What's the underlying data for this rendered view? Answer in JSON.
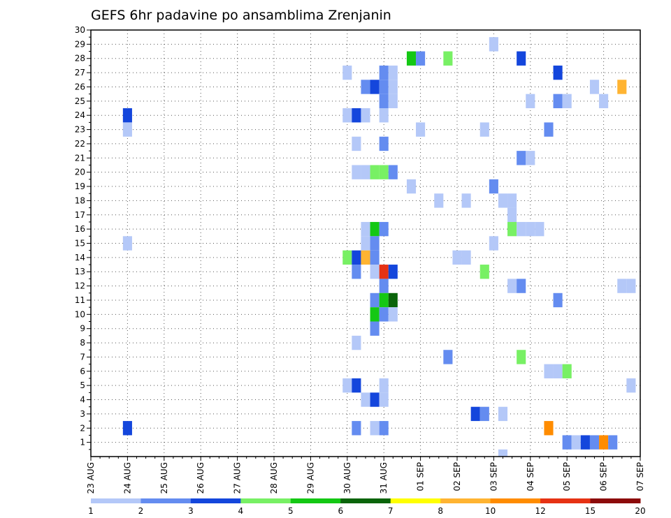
{
  "chart_data": {
    "type": "heatmap",
    "title": "GEFS 6hr padavine po ansamblima Zrenjanin",
    "y_ticks": [
      1,
      2,
      3,
      4,
      5,
      6,
      7,
      8,
      9,
      10,
      11,
      12,
      13,
      14,
      15,
      16,
      17,
      18,
      19,
      20,
      21,
      22,
      23,
      24,
      25,
      26,
      27,
      28,
      29,
      30
    ],
    "ylim": [
      0,
      30
    ],
    "x_ticks": [
      {
        "label": "23 AUG",
        "day": 0
      },
      {
        "label": "24 AUG",
        "day": 1
      },
      {
        "label": "25 AUG",
        "day": 2
      },
      {
        "label": "26 AUG",
        "day": 3
      },
      {
        "label": "27 AUG",
        "day": 4
      },
      {
        "label": "28 AUG",
        "day": 5
      },
      {
        "label": "29 AUG",
        "day": 6
      },
      {
        "label": "30 AUG",
        "day": 7
      },
      {
        "label": "31 AUG",
        "day": 8
      },
      {
        "label": "01 SEP",
        "day": 9
      },
      {
        "label": "02 SEP",
        "day": 10
      },
      {
        "label": "03 SEP",
        "day": 11
      },
      {
        "label": "04 SEP",
        "day": 12
      },
      {
        "label": "05 SEP",
        "day": 13
      },
      {
        "label": "06 SEP",
        "day": 14
      },
      {
        "label": "07 SEP",
        "day": 15
      }
    ],
    "xlim": [
      0,
      15
    ],
    "grid": true,
    "colorbar": {
      "labels": [
        "1",
        "2",
        "3",
        "4",
        "5",
        "6",
        "7",
        "8",
        "10",
        "12",
        "15",
        "20"
      ],
      "colors": [
        "#b4c8f8",
        "#648cf0",
        "#1446dc",
        "#78f064",
        "#14c814",
        "#0a640a",
        "#ffff00",
        "#ffb432",
        "#ff8c00",
        "#e63214",
        "#8c0a0a"
      ]
    },
    "cells": [
      {
        "x": 1.0,
        "y": 24,
        "v": 3
      },
      {
        "x": 1.0,
        "y": 23,
        "v": 1
      },
      {
        "x": 1.0,
        "y": 15,
        "v": 1
      },
      {
        "x": 1.0,
        "y": 2,
        "v": 3
      },
      {
        "x": 7.0,
        "y": 27,
        "v": 1
      },
      {
        "x": 7.0,
        "y": 24,
        "v": 1
      },
      {
        "x": 7.0,
        "y": 14,
        "v": 4
      },
      {
        "x": 7.0,
        "y": 5,
        "v": 1
      },
      {
        "x": 7.25,
        "y": 24,
        "v": 3
      },
      {
        "x": 7.25,
        "y": 22,
        "v": 1
      },
      {
        "x": 7.25,
        "y": 20,
        "v": 1
      },
      {
        "x": 7.25,
        "y": 14,
        "v": 3
      },
      {
        "x": 7.25,
        "y": 13,
        "v": 2
      },
      {
        "x": 7.25,
        "y": 8,
        "v": 1
      },
      {
        "x": 7.25,
        "y": 5,
        "v": 3
      },
      {
        "x": 7.25,
        "y": 2,
        "v": 2
      },
      {
        "x": 7.5,
        "y": 26,
        "v": 2
      },
      {
        "x": 7.5,
        "y": 24,
        "v": 1
      },
      {
        "x": 7.5,
        "y": 20,
        "v": 1
      },
      {
        "x": 7.5,
        "y": 16,
        "v": 1
      },
      {
        "x": 7.5,
        "y": 15,
        "v": 1
      },
      {
        "x": 7.5,
        "y": 14,
        "v": 8
      },
      {
        "x": 7.5,
        "y": 4,
        "v": 1
      },
      {
        "x": 7.75,
        "y": 26,
        "v": 3
      },
      {
        "x": 7.75,
        "y": 20,
        "v": 4
      },
      {
        "x": 7.75,
        "y": 16,
        "v": 5
      },
      {
        "x": 7.75,
        "y": 15,
        "v": 2
      },
      {
        "x": 7.75,
        "y": 14,
        "v": 2
      },
      {
        "x": 7.75,
        "y": 13,
        "v": 1
      },
      {
        "x": 7.75,
        "y": 11,
        "v": 2
      },
      {
        "x": 7.75,
        "y": 10,
        "v": 5
      },
      {
        "x": 7.75,
        "y": 9,
        "v": 2
      },
      {
        "x": 7.75,
        "y": 4,
        "v": 3
      },
      {
        "x": 7.75,
        "y": 2,
        "v": 1
      },
      {
        "x": 8.0,
        "y": 27,
        "v": 2
      },
      {
        "x": 8.0,
        "y": 26,
        "v": 2
      },
      {
        "x": 8.0,
        "y": 25,
        "v": 2
      },
      {
        "x": 8.0,
        "y": 24,
        "v": 1
      },
      {
        "x": 8.0,
        "y": 22,
        "v": 2
      },
      {
        "x": 8.0,
        "y": 20,
        "v": 4
      },
      {
        "x": 8.0,
        "y": 16,
        "v": 2
      },
      {
        "x": 8.0,
        "y": 13,
        "v": 12
      },
      {
        "x": 8.0,
        "y": 12,
        "v": 2
      },
      {
        "x": 8.0,
        "y": 11,
        "v": 5
      },
      {
        "x": 8.0,
        "y": 10,
        "v": 2
      },
      {
        "x": 8.0,
        "y": 5,
        "v": 1
      },
      {
        "x": 8.0,
        "y": 4,
        "v": 1
      },
      {
        "x": 8.0,
        "y": 2,
        "v": 2
      },
      {
        "x": 8.25,
        "y": 27,
        "v": 1
      },
      {
        "x": 8.25,
        "y": 26,
        "v": 1
      },
      {
        "x": 8.25,
        "y": 25,
        "v": 1
      },
      {
        "x": 8.25,
        "y": 20,
        "v": 2
      },
      {
        "x": 8.25,
        "y": 13,
        "v": 3
      },
      {
        "x": 8.25,
        "y": 11,
        "v": 6
      },
      {
        "x": 8.25,
        "y": 10,
        "v": 1
      },
      {
        "x": 8.75,
        "y": 28,
        "v": 5
      },
      {
        "x": 9.0,
        "y": 28,
        "v": 2
      },
      {
        "x": 8.75,
        "y": 19,
        "v": 1
      },
      {
        "x": 9.0,
        "y": 23,
        "v": 1
      },
      {
        "x": 9.5,
        "y": 18,
        "v": 1
      },
      {
        "x": 9.75,
        "y": 28,
        "v": 4
      },
      {
        "x": 9.75,
        "y": 7,
        "v": 2
      },
      {
        "x": 10.0,
        "y": 14,
        "v": 1
      },
      {
        "x": 10.25,
        "y": 14,
        "v": 1
      },
      {
        "x": 10.25,
        "y": 18,
        "v": 1
      },
      {
        "x": 10.5,
        "y": 3,
        "v": 3
      },
      {
        "x": 10.75,
        "y": 3,
        "v": 2
      },
      {
        "x": 10.75,
        "y": 23,
        "v": 1
      },
      {
        "x": 10.75,
        "y": 13,
        "v": 4
      },
      {
        "x": 11.0,
        "y": 29,
        "v": 1
      },
      {
        "x": 11.0,
        "y": 19,
        "v": 2
      },
      {
        "x": 11.0,
        "y": 15,
        "v": 1
      },
      {
        "x": 11.25,
        "y": 18,
        "v": 1
      },
      {
        "x": 11.25,
        "y": 3,
        "v": 1
      },
      {
        "x": 11.25,
        "y": 0,
        "v": 1
      },
      {
        "x": 11.5,
        "y": 18,
        "v": 1
      },
      {
        "x": 11.5,
        "y": 17,
        "v": 1
      },
      {
        "x": 11.5,
        "y": 16,
        "v": 4
      },
      {
        "x": 11.5,
        "y": 12,
        "v": 1
      },
      {
        "x": 11.75,
        "y": 28,
        "v": 3
      },
      {
        "x": 11.75,
        "y": 21,
        "v": 2
      },
      {
        "x": 11.75,
        "y": 16,
        "v": 1
      },
      {
        "x": 11.75,
        "y": 12,
        "v": 2
      },
      {
        "x": 11.75,
        "y": 7,
        "v": 4
      },
      {
        "x": 12.0,
        "y": 25,
        "v": 1
      },
      {
        "x": 12.0,
        "y": 21,
        "v": 1
      },
      {
        "x": 12.0,
        "y": 16,
        "v": 1
      },
      {
        "x": 12.25,
        "y": 16,
        "v": 1
      },
      {
        "x": 12.5,
        "y": 23,
        "v": 2
      },
      {
        "x": 12.5,
        "y": 2,
        "v": 10
      },
      {
        "x": 12.5,
        "y": 6,
        "v": 1
      },
      {
        "x": 12.75,
        "y": 27,
        "v": 3
      },
      {
        "x": 12.75,
        "y": 25,
        "v": 2
      },
      {
        "x": 12.75,
        "y": 11,
        "v": 2
      },
      {
        "x": 12.75,
        "y": 6,
        "v": 1
      },
      {
        "x": 13.0,
        "y": 25,
        "v": 1
      },
      {
        "x": 13.0,
        "y": 6,
        "v": 4
      },
      {
        "x": 13.0,
        "y": 1,
        "v": 2
      },
      {
        "x": 13.25,
        "y": 1,
        "v": 1
      },
      {
        "x": 13.5,
        "y": 1,
        "v": 3
      },
      {
        "x": 13.75,
        "y": 1,
        "v": 2
      },
      {
        "x": 13.75,
        "y": 26,
        "v": 1
      },
      {
        "x": 14.0,
        "y": 25,
        "v": 1
      },
      {
        "x": 14.0,
        "y": 1,
        "v": 10
      },
      {
        "x": 14.25,
        "y": 1,
        "v": 2
      },
      {
        "x": 14.5,
        "y": 26,
        "v": 8
      },
      {
        "x": 14.5,
        "y": 12,
        "v": 1
      },
      {
        "x": 14.75,
        "y": 12,
        "v": 1
      },
      {
        "x": 14.75,
        "y": 5,
        "v": 1
      }
    ]
  }
}
